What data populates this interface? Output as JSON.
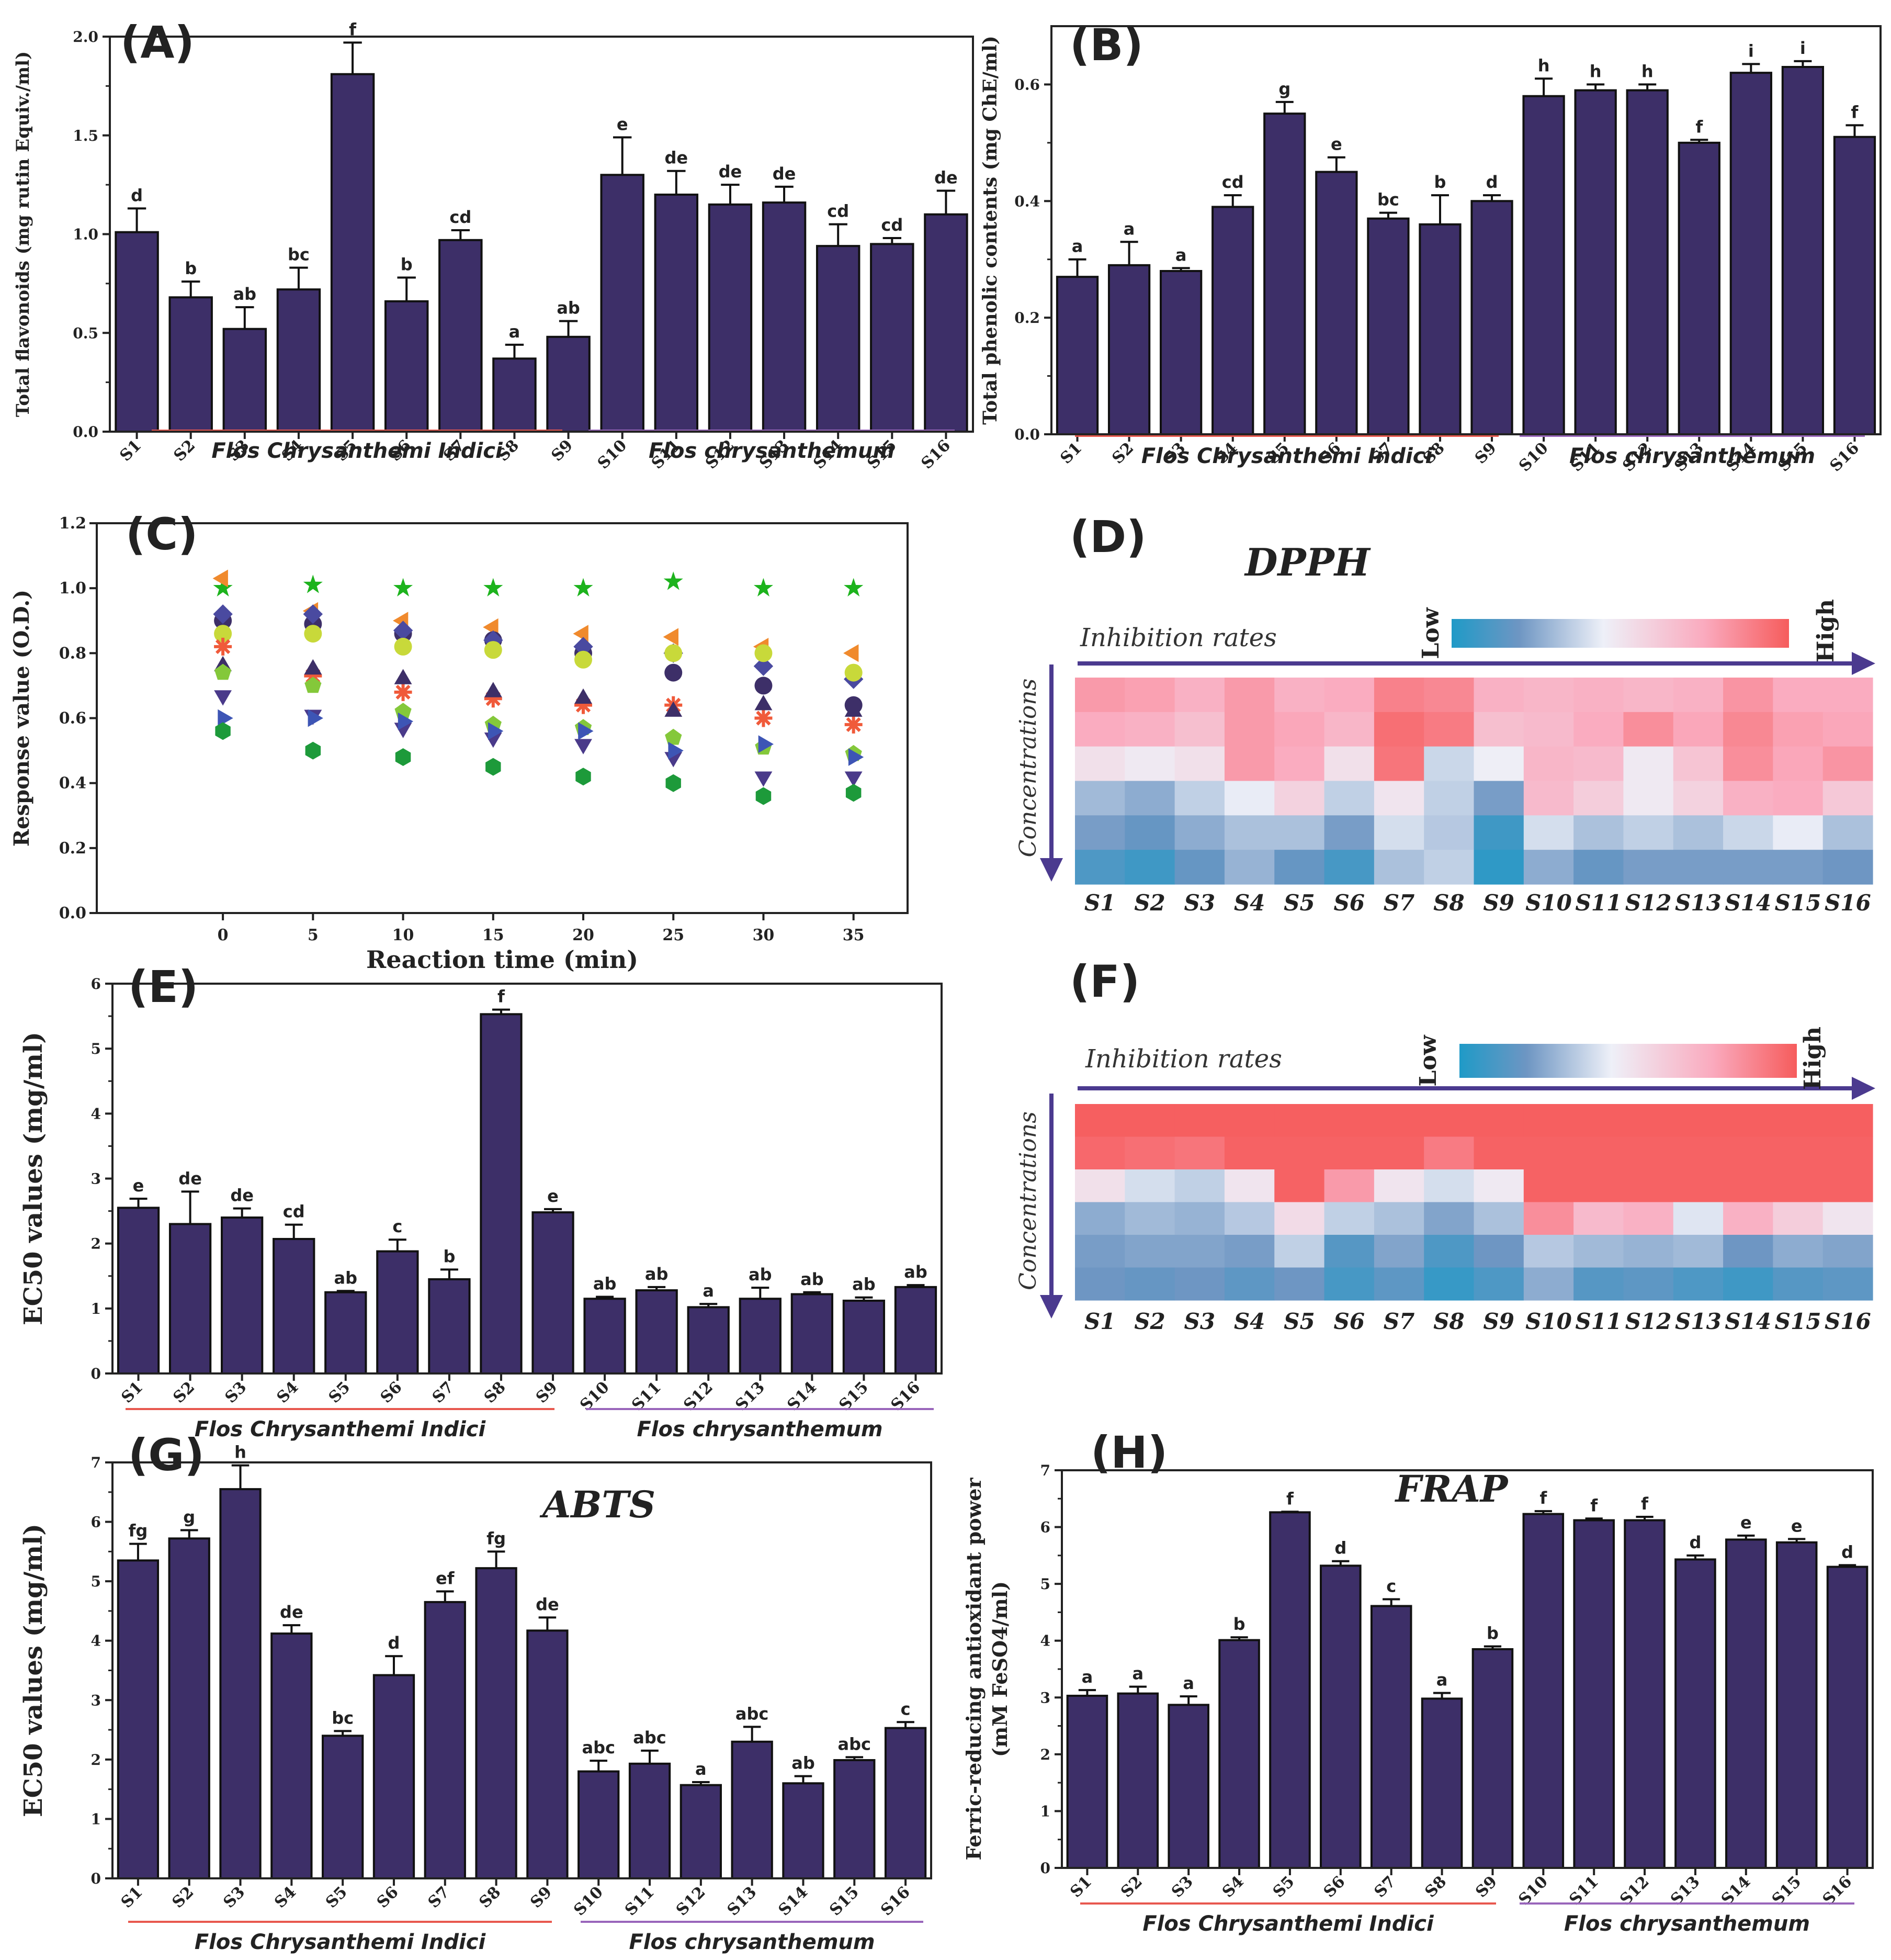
{
  "figure": {
    "group_labels": [
      "Flos Chrysanthemi Indici",
      "Flos chrysanthemum"
    ],
    "group_colors": [
      "#e8584f",
      "#9966bb"
    ],
    "bar_color": "#3d2f68",
    "samples": [
      "S1",
      "S2",
      "S3",
      "S4",
      "S5",
      "S6",
      "S7",
      "S8",
      "S9",
      "S10",
      "S11",
      "S12",
      "S13",
      "S14",
      "S15",
      "S16"
    ]
  },
  "chart_data": [
    {
      "id": "A",
      "type": "bar",
      "panel_label": "(A)",
      "ylabel": "Total flavonoids (mg rutin Equiv./ml)",
      "ylim": [
        0,
        2.0
      ],
      "yticks": [
        "0.0",
        "0.5",
        "1.0",
        "1.5",
        "2.0"
      ],
      "yticks_values": [
        0,
        0.5,
        1.0,
        1.5,
        2.0
      ],
      "categories": [
        "S1",
        "S2",
        "S3",
        "S4",
        "S5",
        "S6",
        "S7",
        "S8",
        "S9",
        "S10",
        "S11",
        "S12",
        "S13",
        "S14",
        "S15",
        "S16"
      ],
      "values": [
        1.01,
        0.68,
        0.52,
        0.72,
        1.81,
        0.66,
        0.97,
        0.37,
        0.48,
        1.3,
        1.2,
        1.15,
        1.16,
        0.94,
        0.95,
        1.1
      ],
      "errors": [
        0.12,
        0.08,
        0.11,
        0.11,
        0.16,
        0.12,
        0.05,
        0.07,
        0.08,
        0.19,
        0.12,
        0.1,
        0.08,
        0.11,
        0.03,
        0.12
      ],
      "labels": [
        "d",
        "b",
        "ab",
        "bc",
        "f",
        "b",
        "cd",
        "a",
        "ab",
        "e",
        "de",
        "de",
        "de",
        "cd",
        "cd",
        "de"
      ]
    },
    {
      "id": "B",
      "type": "bar",
      "panel_label": "(B)",
      "ylabel": "Total phenolic contents (mg ChE/ml)",
      "ylim": [
        0,
        0.7
      ],
      "yticks": [
        "0.0",
        "0.2",
        "0.4",
        "0.6"
      ],
      "yticks_values": [
        0,
        0.2,
        0.4,
        0.6
      ],
      "categories": [
        "S1",
        "S2",
        "S3",
        "S4",
        "S5",
        "S6",
        "S7",
        "S8",
        "S9",
        "S10",
        "S11",
        "S12",
        "S13",
        "S14",
        "S15",
        "S16"
      ],
      "values": [
        0.27,
        0.29,
        0.28,
        0.39,
        0.55,
        0.45,
        0.37,
        0.36,
        0.4,
        0.58,
        0.59,
        0.59,
        0.5,
        0.62,
        0.63,
        0.51
      ],
      "errors": [
        0.03,
        0.04,
        0.005,
        0.02,
        0.02,
        0.025,
        0.01,
        0.05,
        0.01,
        0.03,
        0.01,
        0.01,
        0.005,
        0.015,
        0.01,
        0.02
      ],
      "labels": [
        "a",
        "a",
        "a",
        "cd",
        "g",
        "e",
        "bc",
        "b",
        "d",
        "h",
        "h",
        "h",
        "f",
        "i",
        "i",
        "f"
      ]
    },
    {
      "id": "C",
      "type": "scatter",
      "panel_label": "(C)",
      "xlabel": "Reaction time (min)",
      "ylabel": "Response value (O.D.)",
      "ylim": [
        0,
        1.2
      ],
      "xlim": [
        -7,
        38
      ],
      "x": [
        0,
        5,
        10,
        15,
        20,
        25,
        30,
        35
      ],
      "yticks": [
        "0.0",
        "0.2",
        "0.4",
        "0.6",
        "0.8",
        "1.0",
        "1.2"
      ],
      "yticks_values": [
        0,
        0.2,
        0.4,
        0.6,
        0.8,
        1.0,
        1.2
      ],
      "xticks": [
        "0",
        "5",
        "10",
        "15",
        "20",
        "25",
        "30",
        "35"
      ],
      "series": [
        {
          "marker": "star",
          "color": "#1db31d",
          "values": [
            1.0,
            1.01,
            1.0,
            1.0,
            1.0,
            1.02,
            1.0,
            1.0
          ]
        },
        {
          "marker": "triangle-left",
          "color": "#f08a2d",
          "values": [
            1.03,
            0.93,
            0.9,
            0.88,
            0.86,
            0.85,
            0.82,
            0.8
          ]
        },
        {
          "marker": "circle",
          "color": "#3d2f68",
          "values": [
            0.9,
            0.89,
            0.86,
            0.84,
            0.8,
            0.74,
            0.7,
            0.64
          ]
        },
        {
          "marker": "diamond",
          "color": "#4a4aa0",
          "values": [
            0.92,
            0.92,
            0.87,
            0.84,
            0.82,
            0.8,
            0.76,
            0.72
          ]
        },
        {
          "marker": "circle",
          "color": "#c8d93a",
          "values": [
            0.86,
            0.86,
            0.82,
            0.81,
            0.78,
            0.8,
            0.8,
            0.74
          ]
        },
        {
          "marker": "asterisk",
          "color": "#f05a3a",
          "values": [
            0.82,
            0.73,
            0.68,
            0.66,
            0.64,
            0.64,
            0.6,
            0.58
          ]
        },
        {
          "marker": "triangle-up",
          "color": "#3d2f68",
          "values": [
            0.76,
            0.75,
            0.72,
            0.68,
            0.66,
            0.62,
            0.64,
            0.62
          ]
        },
        {
          "marker": "pentagon",
          "color": "#84c83a",
          "values": [
            0.74,
            0.7,
            0.62,
            0.58,
            0.57,
            0.54,
            0.51,
            0.49
          ]
        },
        {
          "marker": "triangle-down",
          "color": "#4a3a8a",
          "values": [
            0.67,
            0.61,
            0.57,
            0.54,
            0.52,
            0.48,
            0.42,
            0.42
          ]
        },
        {
          "marker": "triangle-right",
          "color": "#3d55b5",
          "values": [
            0.6,
            0.6,
            0.59,
            0.56,
            0.56,
            0.5,
            0.52,
            0.48
          ]
        },
        {
          "marker": "hexagon",
          "color": "#1d9a3a",
          "values": [
            0.56,
            0.5,
            0.48,
            0.45,
            0.42,
            0.4,
            0.36,
            0.37
          ]
        }
      ]
    },
    {
      "id": "D",
      "type": "heatmap",
      "panel_label": "(D)",
      "title": "DPPH",
      "scale_label": "Inhibition rates",
      "low_label": "Low",
      "high_label": "High",
      "row_label": "Concentrations",
      "columns": [
        "S1",
        "S2",
        "S3",
        "S4",
        "S5",
        "S6",
        "S7",
        "S8",
        "S9",
        "S10",
        "S11",
        "S12",
        "S13",
        "S14",
        "S15",
        "S16"
      ],
      "values": [
        [
          0.8,
          0.78,
          0.72,
          0.8,
          0.72,
          0.74,
          0.88,
          0.86,
          0.72,
          0.7,
          0.72,
          0.7,
          0.72,
          0.82,
          0.74,
          0.74
        ],
        [
          0.74,
          0.72,
          0.66,
          0.8,
          0.76,
          0.7,
          0.94,
          0.9,
          0.66,
          0.68,
          0.74,
          0.84,
          0.76,
          0.86,
          0.78,
          0.76
        ],
        [
          0.52,
          0.48,
          0.52,
          0.8,
          0.74,
          0.52,
          0.92,
          0.38,
          0.46,
          0.7,
          0.68,
          0.48,
          0.64,
          0.84,
          0.76,
          0.82
        ],
        [
          0.3,
          0.26,
          0.36,
          0.44,
          0.58,
          0.36,
          0.5,
          0.36,
          0.22,
          0.68,
          0.6,
          0.48,
          0.58,
          0.72,
          0.74,
          0.62
        ],
        [
          0.22,
          0.18,
          0.26,
          0.32,
          0.32,
          0.22,
          0.4,
          0.34,
          0.08,
          0.4,
          0.32,
          0.36,
          0.32,
          0.38,
          0.44,
          0.32
        ],
        [
          0.12,
          0.08,
          0.18,
          0.28,
          0.18,
          0.1,
          0.32,
          0.36,
          0.04,
          0.26,
          0.18,
          0.22,
          0.22,
          0.22,
          0.22,
          0.2
        ]
      ]
    },
    {
      "id": "E",
      "type": "bar",
      "panel_label": "(E)",
      "ylabel": "EC50 values (mg/ml)",
      "ylim": [
        0,
        6
      ],
      "yticks": [
        "0",
        "1",
        "2",
        "3",
        "4",
        "5",
        "6"
      ],
      "yticks_values": [
        0,
        1,
        2,
        3,
        4,
        5,
        6
      ],
      "categories": [
        "S1",
        "S2",
        "S3",
        "S4",
        "S5",
        "S6",
        "S7",
        "S8",
        "S9",
        "S10",
        "S11",
        "S12",
        "S13",
        "S14",
        "S15",
        "S16"
      ],
      "values": [
        2.55,
        2.3,
        2.4,
        2.07,
        1.25,
        1.88,
        1.45,
        5.53,
        2.48,
        1.15,
        1.28,
        1.02,
        1.15,
        1.22,
        1.12,
        1.33
      ],
      "errors": [
        0.14,
        0.5,
        0.14,
        0.22,
        0.02,
        0.18,
        0.15,
        0.07,
        0.05,
        0.03,
        0.05,
        0.05,
        0.17,
        0.03,
        0.05,
        0.03
      ],
      "labels": [
        "e",
        "de",
        "de",
        "cd",
        "ab",
        "c",
        "b",
        "f",
        "e",
        "ab",
        "ab",
        "a",
        "ab",
        "ab",
        "ab",
        "ab"
      ]
    },
    {
      "id": "F",
      "type": "heatmap",
      "panel_label": "(F)",
      "title": "",
      "scale_label": "Inhibition rates",
      "low_label": "Low",
      "high_label": "High",
      "row_label": "Concentrations",
      "columns": [
        "S1",
        "S2",
        "S3",
        "S4",
        "S5",
        "S6",
        "S7",
        "S8",
        "S9",
        "S10",
        "S11",
        "S12",
        "S13",
        "S14",
        "S15",
        "S16"
      ],
      "values": [
        [
          0.99,
          0.99,
          0.99,
          0.99,
          0.99,
          0.99,
          0.99,
          0.99,
          0.99,
          0.99,
          0.99,
          0.99,
          0.99,
          0.99,
          0.99,
          0.99
        ],
        [
          0.96,
          0.94,
          0.92,
          0.98,
          0.98,
          0.98,
          0.98,
          0.9,
          0.98,
          0.98,
          0.98,
          0.98,
          0.98,
          0.98,
          0.98,
          0.98
        ],
        [
          0.52,
          0.4,
          0.36,
          0.5,
          0.98,
          0.8,
          0.5,
          0.4,
          0.48,
          0.98,
          0.98,
          0.98,
          0.98,
          0.98,
          0.98,
          0.98
        ],
        [
          0.26,
          0.3,
          0.28,
          0.34,
          0.54,
          0.36,
          0.32,
          0.24,
          0.32,
          0.84,
          0.68,
          0.72,
          0.42,
          0.72,
          0.6,
          0.5
        ],
        [
          0.22,
          0.24,
          0.24,
          0.22,
          0.36,
          0.14,
          0.24,
          0.12,
          0.2,
          0.34,
          0.3,
          0.28,
          0.3,
          0.2,
          0.26,
          0.24
        ],
        [
          0.2,
          0.18,
          0.2,
          0.16,
          0.2,
          0.1,
          0.16,
          0.06,
          0.12,
          0.26,
          0.14,
          0.16,
          0.12,
          0.08,
          0.14,
          0.16
        ]
      ]
    },
    {
      "id": "G",
      "type": "bar",
      "panel_label": "(G)",
      "title": "ABTS",
      "ylabel": "EC50 values (mg/ml)",
      "ylim": [
        0,
        7
      ],
      "yticks": [
        "0",
        "1",
        "2",
        "3",
        "4",
        "5",
        "6",
        "7"
      ],
      "yticks_values": [
        0,
        1,
        2,
        3,
        4,
        5,
        6,
        7
      ],
      "categories": [
        "S1",
        "S2",
        "S3",
        "S4",
        "S5",
        "S6",
        "S7",
        "S8",
        "S9",
        "S10",
        "S11",
        "S12",
        "S13",
        "S14",
        "S15",
        "S16"
      ],
      "values": [
        5.35,
        5.72,
        6.55,
        4.12,
        2.4,
        3.42,
        4.65,
        5.22,
        4.17,
        1.8,
        1.93,
        1.57,
        2.3,
        1.6,
        1.99,
        2.53
      ],
      "errors": [
        0.28,
        0.14,
        0.4,
        0.14,
        0.08,
        0.32,
        0.18,
        0.28,
        0.22,
        0.18,
        0.22,
        0.05,
        0.25,
        0.12,
        0.05,
        0.1
      ],
      "labels": [
        "fg",
        "g",
        "h",
        "de",
        "bc",
        "d",
        "ef",
        "fg",
        "de",
        "abc",
        "abc",
        "a",
        "abc",
        "ab",
        "abc",
        "c"
      ]
    },
    {
      "id": "H",
      "type": "bar",
      "panel_label": "(H)",
      "title": "FRAP",
      "ylabel": "Ferric-reducing antioxidant power",
      "ylabel2": "(mM FeSO4/ml)",
      "ylim": [
        0,
        7
      ],
      "yticks": [
        "0",
        "1",
        "2",
        "3",
        "4",
        "5",
        "6",
        "7"
      ],
      "yticks_values": [
        0,
        1,
        2,
        3,
        4,
        5,
        6,
        7
      ],
      "categories": [
        "S1",
        "S2",
        "S3",
        "S4",
        "S5",
        "S6",
        "S7",
        "S8",
        "S9",
        "S10",
        "S11",
        "S12",
        "S13",
        "S14",
        "S15",
        "S16"
      ],
      "values": [
        3.03,
        3.07,
        2.87,
        4.01,
        6.26,
        5.32,
        4.61,
        2.98,
        3.85,
        6.23,
        6.12,
        6.12,
        5.43,
        5.78,
        5.73,
        5.3
      ],
      "errors": [
        0.1,
        0.12,
        0.15,
        0.05,
        0.01,
        0.08,
        0.12,
        0.1,
        0.05,
        0.05,
        0.03,
        0.06,
        0.07,
        0.07,
        0.06,
        0.03
      ],
      "labels": [
        "a",
        "a",
        "a",
        "b",
        "f",
        "d",
        "c",
        "a",
        "b",
        "f",
        "f",
        "f",
        "d",
        "e",
        "e",
        "d"
      ]
    }
  ]
}
